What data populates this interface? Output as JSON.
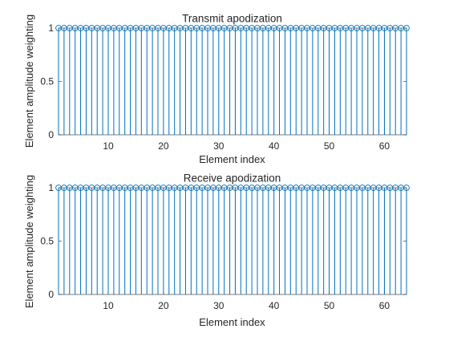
{
  "chart_data": [
    {
      "type": "stem",
      "title": "Transmit apodization",
      "xlabel": "Element index",
      "ylabel": "Element amplitude weighting",
      "xlim": [
        1,
        64
      ],
      "ylim": [
        0,
        1
      ],
      "xticks": [
        10,
        20,
        30,
        40,
        50,
        60
      ],
      "yticks": [
        0,
        0.5,
        1
      ],
      "grid": false,
      "series": [
        {
          "color": "#0072BD",
          "marker": "circle",
          "x": [
            1,
            2,
            3,
            4,
            5,
            6,
            7,
            8,
            9,
            10,
            11,
            12,
            13,
            14,
            15,
            16,
            17,
            18,
            19,
            20,
            21,
            22,
            23,
            24,
            25,
            26,
            27,
            28,
            29,
            30,
            31,
            32,
            33,
            34,
            35,
            36,
            37,
            38,
            39,
            40,
            41,
            42,
            43,
            44,
            45,
            46,
            47,
            48,
            49,
            50,
            51,
            52,
            53,
            54,
            55,
            56,
            57,
            58,
            59,
            60,
            61,
            62,
            63,
            64
          ],
          "values": [
            1,
            1,
            1,
            1,
            1,
            1,
            1,
            1,
            1,
            1,
            1,
            1,
            1,
            1,
            1,
            1,
            1,
            1,
            1,
            1,
            1,
            1,
            1,
            1,
            1,
            1,
            1,
            1,
            1,
            1,
            1,
            1,
            1,
            1,
            1,
            1,
            1,
            1,
            1,
            1,
            1,
            1,
            1,
            1,
            1,
            1,
            1,
            1,
            1,
            1,
            1,
            1,
            1,
            1,
            1,
            1,
            1,
            1,
            1,
            1,
            1,
            1,
            1,
            1
          ]
        }
      ]
    },
    {
      "type": "stem",
      "title": "Receive apodization",
      "xlabel": "Element index",
      "ylabel": "Element amplitude weighting",
      "xlim": [
        1,
        64
      ],
      "ylim": [
        0,
        1
      ],
      "xticks": [
        10,
        20,
        30,
        40,
        50,
        60
      ],
      "yticks": [
        0,
        0.5,
        1
      ],
      "grid": false,
      "series": [
        {
          "color": "#0072BD",
          "marker": "circle",
          "x": [
            1,
            2,
            3,
            4,
            5,
            6,
            7,
            8,
            9,
            10,
            11,
            12,
            13,
            14,
            15,
            16,
            17,
            18,
            19,
            20,
            21,
            22,
            23,
            24,
            25,
            26,
            27,
            28,
            29,
            30,
            31,
            32,
            33,
            34,
            35,
            36,
            37,
            38,
            39,
            40,
            41,
            42,
            43,
            44,
            45,
            46,
            47,
            48,
            49,
            50,
            51,
            52,
            53,
            54,
            55,
            56,
            57,
            58,
            59,
            60,
            61,
            62,
            63,
            64
          ],
          "values": [
            1,
            1,
            1,
            1,
            1,
            1,
            1,
            1,
            1,
            1,
            1,
            1,
            1,
            1,
            1,
            1,
            1,
            1,
            1,
            1,
            1,
            1,
            1,
            1,
            1,
            1,
            1,
            1,
            1,
            1,
            1,
            1,
            1,
            1,
            1,
            1,
            1,
            1,
            1,
            1,
            1,
            1,
            1,
            1,
            1,
            1,
            1,
            1,
            1,
            1,
            1,
            1,
            1,
            1,
            1,
            1,
            1,
            1,
            1,
            1,
            1,
            1,
            1,
            1
          ]
        }
      ]
    }
  ]
}
